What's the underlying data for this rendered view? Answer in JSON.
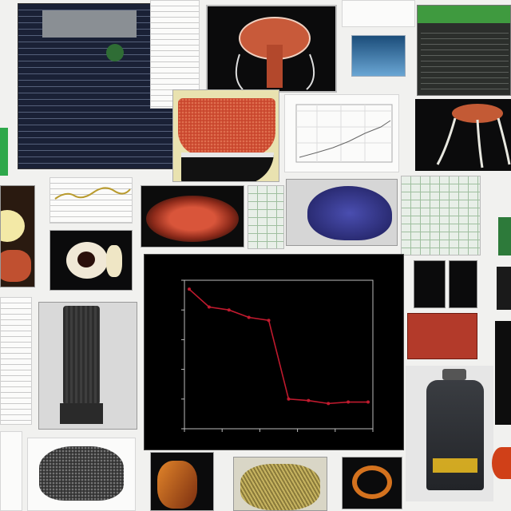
{
  "chart_data": {
    "type": "line",
    "title": "",
    "xlabel": "",
    "ylabel": "",
    "x": [
      0,
      1,
      2,
      3,
      4,
      5,
      6,
      7,
      8,
      9
    ],
    "series": [
      {
        "values": [
          9.4,
          8.2,
          8.0,
          7.5,
          7.3,
          2.0,
          1.9,
          1.7,
          1.8,
          1.8
        ]
      }
    ],
    "xlim": [
      0,
      9
    ],
    "ylim": [
      0,
      10
    ],
    "grid": false,
    "line_color": "#c01a2e"
  },
  "colors": {
    "background": "#f1f1ef",
    "panel_dark": "#0b0b0c",
    "accent_red": "#c01a2e",
    "bottle_label": "#f0c020"
  }
}
